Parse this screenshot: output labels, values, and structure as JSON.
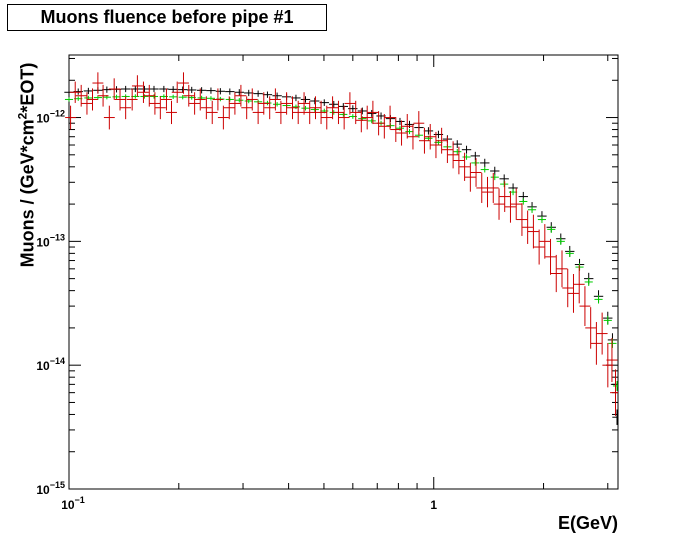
{
  "chart_data": {
    "type": "scatter",
    "title": "Muons fluence before pipe #1",
    "xlabel": "E(GeV)",
    "ylabel_pre": "Muons / (GeV*cm",
    "ylabel_sup": "2",
    "ylabel_post": "*EOT)",
    "x_scale": "log",
    "y_scale": "log",
    "xlim": [
      0.1,
      3.2
    ],
    "ylim": [
      1e-15,
      3.2e-12
    ],
    "grid": false,
    "legend": "none",
    "x_ticks": [
      {
        "value": 0.1,
        "base": "10",
        "exp": "−1"
      },
      {
        "value": 1,
        "base": "1",
        "exp": ""
      }
    ],
    "y_ticks": [
      {
        "value": 1e-12,
        "base": "10",
        "exp": "−12"
      },
      {
        "value": 1e-13,
        "base": "10",
        "exp": "−13"
      },
      {
        "value": 1e-14,
        "base": "10",
        "exp": "−14"
      },
      {
        "value": 1e-15,
        "base": "10",
        "exp": "−15"
      }
    ],
    "series": [
      {
        "color": "#000000",
        "points": [
          [
            0.1,
            1.6e-12
          ],
          [
            0.106,
            1.62e-12
          ],
          [
            0.113,
            1.64e-12
          ],
          [
            0.12,
            1.66e-12
          ],
          [
            0.127,
            1.68e-12
          ],
          [
            0.135,
            1.69e-12
          ],
          [
            0.143,
            1.7e-12
          ],
          [
            0.152,
            1.7e-12
          ],
          [
            0.161,
            1.7e-12
          ],
          [
            0.171,
            1.7e-12
          ],
          [
            0.182,
            1.7e-12
          ],
          [
            0.193,
            1.69e-12
          ],
          [
            0.205,
            1.68e-12
          ],
          [
            0.217,
            1.67e-12
          ],
          [
            0.231,
            1.66e-12
          ],
          [
            0.245,
            1.65e-12
          ],
          [
            0.26,
            1.63e-12
          ],
          [
            0.276,
            1.62e-12
          ],
          [
            0.293,
            1.6e-12
          ],
          [
            0.311,
            1.58e-12
          ],
          [
            0.33,
            1.56e-12
          ],
          [
            0.35,
            1.53e-12
          ],
          [
            0.372,
            1.5e-12
          ],
          [
            0.395,
            1.47e-12
          ],
          [
            0.419,
            1.44e-12
          ],
          [
            0.445,
            1.4e-12
          ],
          [
            0.472,
            1.36e-12
          ],
          [
            0.501,
            1.32e-12
          ],
          [
            0.532,
            1.28e-12
          ],
          [
            0.565,
            1.23e-12
          ],
          [
            0.6,
            1.18e-12
          ],
          [
            0.637,
            1.13e-12
          ],
          [
            0.676,
            1.08e-12
          ],
          [
            0.717,
            1.03e-12
          ],
          [
            0.761,
            9.8e-13
          ],
          [
            0.808,
            9.3e-13
          ],
          [
            0.858,
            8.8e-13
          ],
          [
            0.911,
            8.3e-13
          ],
          [
            0.967,
            7.8e-13
          ],
          [
            1.03,
            7.3e-13
          ],
          [
            1.09,
            6.7e-13
          ],
          [
            1.16,
            6.1e-13
          ],
          [
            1.23,
            5.5e-13
          ],
          [
            1.3,
            4.9e-13
          ],
          [
            1.38,
            4.3e-13
          ],
          [
            1.47,
            3.7e-13
          ],
          [
            1.56,
            3.2e-13
          ],
          [
            1.65,
            2.7e-13
          ],
          [
            1.76,
            2.3e-13
          ],
          [
            1.86,
            1.9e-13
          ],
          [
            1.98,
            1.6e-13
          ],
          [
            2.1,
            1.3e-13
          ],
          [
            2.23,
            1.05e-13
          ],
          [
            2.36,
            8.3e-14
          ],
          [
            2.51,
            6.5e-14
          ],
          [
            2.66,
            5e-14
          ],
          [
            2.83,
            3.6e-14
          ],
          [
            3.0,
            2.4e-14
          ],
          [
            3.09,
            1.6e-14
          ],
          [
            3.15,
            7e-15
          ],
          [
            3.18,
            3.8e-15
          ]
        ]
      },
      {
        "color": "#00cc00",
        "points": [
          [
            0.1,
            1.4e-12
          ],
          [
            0.106,
            1.42e-12
          ],
          [
            0.113,
            1.44e-12
          ],
          [
            0.12,
            1.45e-12
          ],
          [
            0.127,
            1.46e-12
          ],
          [
            0.135,
            1.47e-12
          ],
          [
            0.143,
            1.48e-12
          ],
          [
            0.152,
            1.48e-12
          ],
          [
            0.161,
            1.48e-12
          ],
          [
            0.171,
            1.48e-12
          ],
          [
            0.182,
            1.48e-12
          ],
          [
            0.193,
            1.47e-12
          ],
          [
            0.205,
            1.46e-12
          ],
          [
            0.217,
            1.45e-12
          ],
          [
            0.231,
            1.44e-12
          ],
          [
            0.245,
            1.43e-12
          ],
          [
            0.26,
            1.41e-12
          ],
          [
            0.276,
            1.4e-12
          ],
          [
            0.293,
            1.38e-12
          ],
          [
            0.311,
            1.36e-12
          ],
          [
            0.33,
            1.34e-12
          ],
          [
            0.35,
            1.31e-12
          ],
          [
            0.372,
            1.28e-12
          ],
          [
            0.395,
            1.25e-12
          ],
          [
            0.419,
            1.22e-12
          ],
          [
            0.445,
            1.19e-12
          ],
          [
            0.472,
            1.16e-12
          ],
          [
            0.501,
            1.13e-12
          ],
          [
            0.532,
            1.1e-12
          ],
          [
            0.565,
            1.06e-12
          ],
          [
            0.6,
            1.02e-12
          ],
          [
            0.637,
            9.8e-13
          ],
          [
            0.676,
            9.4e-13
          ],
          [
            0.717,
            9e-13
          ],
          [
            0.761,
            8.6e-13
          ],
          [
            0.808,
            8.2e-13
          ],
          [
            0.858,
            7.7e-13
          ],
          [
            0.911,
            7.2e-13
          ],
          [
            0.967,
            6.8e-13
          ],
          [
            1.03,
            6.3e-13
          ],
          [
            1.09,
            5.8e-13
          ],
          [
            1.16,
            5.3e-13
          ],
          [
            1.23,
            4.8e-13
          ],
          [
            1.3,
            4.3e-13
          ],
          [
            1.38,
            3.8e-13
          ],
          [
            1.47,
            3.3e-13
          ],
          [
            1.56,
            2.9e-13
          ],
          [
            1.65,
            2.5e-13
          ],
          [
            1.76,
            2.1e-13
          ],
          [
            1.86,
            1.8e-13
          ],
          [
            1.98,
            1.5e-13
          ],
          [
            2.1,
            1.25e-13
          ],
          [
            2.23,
            1e-13
          ],
          [
            2.36,
            8e-14
          ],
          [
            2.51,
            6.2e-14
          ],
          [
            2.66,
            4.7e-14
          ],
          [
            2.83,
            3.4e-14
          ],
          [
            3.0,
            2.3e-14
          ],
          [
            3.09,
            1.5e-14
          ],
          [
            3.18,
            6.8e-15
          ]
        ]
      },
      {
        "color": "#cc0000",
        "points": [
          [
            0.101,
            1e-12
          ],
          [
            0.104,
            1.6e-12
          ],
          [
            0.108,
            1.5e-12
          ],
          [
            0.112,
            1.3e-12
          ],
          [
            0.116,
            1.4e-12
          ],
          [
            0.12,
            1.9e-12
          ],
          [
            0.124,
            1.5e-12
          ],
          [
            0.129,
            1e-12
          ],
          [
            0.133,
            1.7e-12
          ],
          [
            0.138,
            1.4e-12
          ],
          [
            0.143,
            1.2e-12
          ],
          [
            0.149,
            1.4e-12
          ],
          [
            0.154,
            1.8e-12
          ],
          [
            0.16,
            1.6e-12
          ],
          [
            0.166,
            1.5e-12
          ],
          [
            0.172,
            1.3e-12
          ],
          [
            0.178,
            1.2e-12
          ],
          [
            0.185,
            1.4e-12
          ],
          [
            0.191,
            1.1e-12
          ],
          [
            0.198,
            1.6e-12
          ],
          [
            0.206,
            1.9e-12
          ],
          [
            0.213,
            1.5e-12
          ],
          [
            0.221,
            1.3e-12
          ],
          [
            0.229,
            1.4e-12
          ],
          [
            0.238,
            1.2e-12
          ],
          [
            0.247,
            1.1e-12
          ],
          [
            0.256,
            1.4e-12
          ],
          [
            0.265,
            1e-12
          ],
          [
            0.275,
            1.2e-12
          ],
          [
            0.285,
            1.3e-12
          ],
          [
            0.296,
            1.5e-12
          ],
          [
            0.307,
            1.2e-12
          ],
          [
            0.318,
            1.4e-12
          ],
          [
            0.33,
            1.1e-12
          ],
          [
            0.342,
            1.3e-12
          ],
          [
            0.355,
            1.2e-12
          ],
          [
            0.368,
            1.4e-12
          ],
          [
            0.381,
            1.1e-12
          ],
          [
            0.395,
            1.3e-12
          ],
          [
            0.41,
            1.2e-12
          ],
          [
            0.425,
            1.1e-12
          ],
          [
            0.441,
            1.3e-12
          ],
          [
            0.457,
            1.1e-12
          ],
          [
            0.474,
            1.2e-12
          ],
          [
            0.491,
            1.1e-12
          ],
          [
            0.509,
            1e-12
          ],
          [
            0.528,
            1.2e-12
          ],
          [
            0.548,
            1.1e-12
          ],
          [
            0.568,
            1e-12
          ],
          [
            0.589,
            1.3e-12
          ],
          [
            0.611,
            1.1e-12
          ],
          [
            0.633,
            9.5e-13
          ],
          [
            0.657,
            1e-12
          ],
          [
            0.681,
            1.1e-12
          ],
          [
            0.706,
            9e-13
          ],
          [
            0.732,
            8.5e-13
          ],
          [
            0.759,
            1e-12
          ],
          [
            0.787,
            8e-13
          ],
          [
            0.816,
            7.5e-13
          ],
          [
            0.846,
            8.5e-13
          ],
          [
            0.877,
            7e-13
          ],
          [
            0.91,
            9e-13
          ],
          [
            0.943,
            6.5e-13
          ],
          [
            0.978,
            7e-13
          ],
          [
            1.014,
            6e-13
          ],
          [
            1.051,
            6.5e-13
          ],
          [
            1.09,
            5.5e-13
          ],
          [
            1.13,
            5e-13
          ],
          [
            1.172,
            4.5e-13
          ],
          [
            1.215,
            4e-13
          ],
          [
            1.26,
            3.3e-13
          ],
          [
            1.306,
            3.6e-13
          ],
          [
            1.354,
            2.7e-13
          ],
          [
            1.404,
            2.5e-13
          ],
          [
            1.456,
            2.7e-13
          ],
          [
            1.51,
            2e-13
          ],
          [
            1.565,
            2.3e-13
          ],
          [
            1.623,
            1.9e-13
          ],
          [
            1.683,
            2e-13
          ],
          [
            1.745,
            1.5e-13
          ],
          [
            1.809,
            1.3e-13
          ],
          [
            1.876,
            1.2e-13
          ],
          [
            1.945,
            9e-14
          ],
          [
            2.016,
            1e-13
          ],
          [
            2.09,
            7.5e-14
          ],
          [
            2.167,
            5.5e-14
          ],
          [
            2.247,
            6e-14
          ],
          [
            2.33,
            4.2e-14
          ],
          [
            2.416,
            3.8e-14
          ],
          [
            2.505,
            4.5e-14
          ],
          [
            2.597,
            3e-14
          ],
          [
            2.693,
            2e-14
          ],
          [
            2.792,
            1.5e-14
          ],
          [
            2.895,
            1.8e-14
          ],
          [
            3.001,
            1e-14
          ],
          [
            3.08,
            1.1e-14
          ],
          [
            3.15,
            6e-15
          ]
        ]
      }
    ]
  }
}
